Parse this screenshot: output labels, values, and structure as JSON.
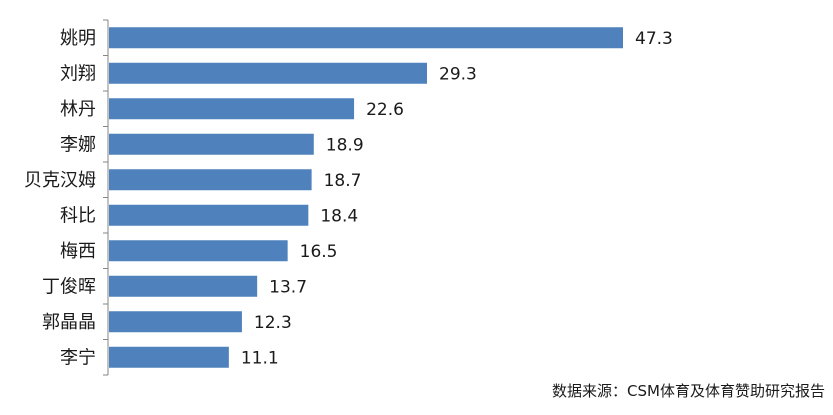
{
  "chart_data": {
    "type": "bar",
    "orientation": "horizontal",
    "categories": [
      "姚明",
      "刘翔",
      "林丹",
      "李娜",
      "贝克汉姆",
      "科比",
      "梅西",
      "丁俊晖",
      "郭晶晶",
      "李宁"
    ],
    "values": [
      47.3,
      29.3,
      22.6,
      18.9,
      18.7,
      18.4,
      16.5,
      13.7,
      12.3,
      11.1
    ],
    "value_labels": [
      "47.3",
      "29.3",
      "22.6",
      "18.9",
      "18.7",
      "18.4",
      "16.5",
      "13.7",
      "12.3",
      "11.1"
    ],
    "title": "",
    "xlabel": "",
    "ylabel": "",
    "xlim": [
      0,
      47.3
    ],
    "bar_color": "#4f81bd",
    "axis_color": "#868686",
    "grid": false,
    "legend": "none",
    "source_note": "数据来源：CSM体育及体育赞助研究报告"
  }
}
